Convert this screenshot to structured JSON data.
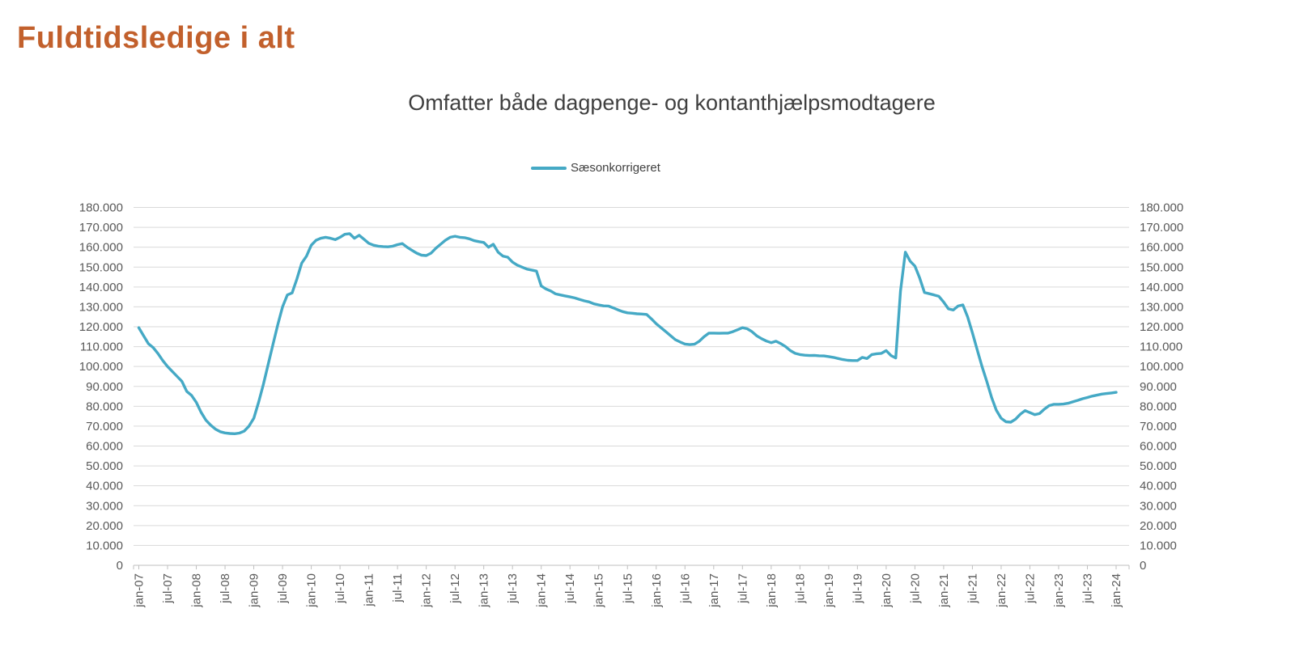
{
  "chart_data": {
    "type": "line",
    "title": "Fuldtidsledige i alt",
    "subtitle": "Omfatter både dagpenge- og kontanthjælpsmodtagere",
    "legend_label": "Sæsonkorrigeret",
    "legend_position": "top-center",
    "title_color": "#c2602c",
    "line_color": "#45a9c5",
    "grid": "horizontal",
    "y_axis_sides": "both",
    "ylim": [
      0,
      180000
    ],
    "y_tick_step": 10000,
    "y_tick_values": [
      0,
      10000,
      20000,
      30000,
      40000,
      50000,
      60000,
      70000,
      80000,
      90000,
      100000,
      110000,
      120000,
      130000,
      140000,
      150000,
      160000,
      170000,
      180000
    ],
    "y_tick_labels": [
      "0",
      "10.000",
      "20.000",
      "30.000",
      "40.000",
      "50.000",
      "60.000",
      "70.000",
      "80.000",
      "90.000",
      "100.000",
      "110.000",
      "120.000",
      "130.000",
      "140.000",
      "150.000",
      "160.000",
      "170.000",
      "180.000"
    ],
    "x_tick_labels": [
      "jan-07",
      "jul-07",
      "jan-08",
      "jul-08",
      "jan-09",
      "jul-09",
      "jan-10",
      "jul-10",
      "jan-11",
      "jul-11",
      "jan-12",
      "jul-12",
      "jan-13",
      "jul-13",
      "jan-14",
      "jul-14",
      "jan-15",
      "jul-15",
      "jan-16",
      "jul-16",
      "jan-17",
      "jul-17",
      "jan-18",
      "jul-18",
      "jan-19",
      "jul-19",
      "jan-20",
      "jul-20",
      "jan-21",
      "jul-21",
      "jan-22",
      "jul-22",
      "jan-23",
      "jul-23",
      "jan-24"
    ],
    "x_tick_interval_months": 6,
    "series": [
      {
        "name": "Sæsonkorrigeret",
        "start": "jan-07",
        "end": "jan-24",
        "frequency": "monthly",
        "values": [
          119500,
          115500,
          111500,
          109500,
          106500,
          103000,
          100000,
          97500,
          95000,
          92500,
          87500,
          85500,
          82000,
          77000,
          73000,
          70500,
          68500,
          67200,
          66600,
          66300,
          66200,
          66500,
          67500,
          70000,
          74000,
          82000,
          91000,
          101000,
          111000,
          121000,
          130000,
          136000,
          137000,
          144000,
          152000,
          155500,
          161000,
          163500,
          164500,
          165000,
          164500,
          163800,
          165000,
          166500,
          166800,
          164500,
          166000,
          164000,
          162000,
          161000,
          160500,
          160300,
          160200,
          160500,
          161300,
          161800,
          160000,
          158500,
          157000,
          156000,
          155800,
          157000,
          159500,
          161500,
          163500,
          165000,
          165500,
          165000,
          164800,
          164200,
          163300,
          162800,
          162400,
          160000,
          161500,
          157500,
          155500,
          155000,
          152500,
          151000,
          150000,
          149000,
          148500,
          148000,
          140500,
          139000,
          138000,
          136500,
          136000,
          135500,
          135000,
          134500,
          133700,
          133000,
          132500,
          131500,
          131000,
          130500,
          130400,
          129500,
          128500,
          127600,
          127000,
          126800,
          126500,
          126400,
          126200,
          124000,
          121500,
          119500,
          117500,
          115500,
          113500,
          112300,
          111300,
          111000,
          111200,
          112700,
          115000,
          116800,
          116800,
          116700,
          116800,
          116800,
          117500,
          118500,
          119500,
          119000,
          117500,
          115400,
          114000,
          112800,
          112000,
          112700,
          111500,
          110000,
          108000,
          106600,
          106000,
          105700,
          105500,
          105600,
          105400,
          105300,
          105000,
          104600,
          104000,
          103500,
          103100,
          103000,
          103000,
          104600,
          104000,
          106000,
          106400,
          106600,
          108000,
          105500,
          104300,
          138000,
          157500,
          153000,
          150500,
          144500,
          137200,
          136600,
          136000,
          135300,
          132400,
          129000,
          128400,
          130400,
          131000,
          125000,
          117000,
          108500,
          100000,
          92500,
          84500,
          78000,
          74000,
          72200,
          72000,
          73500,
          76000,
          77800,
          76800,
          75800,
          76300,
          78500,
          80300,
          81000,
          81000,
          81100,
          81500,
          82300,
          83000,
          83800,
          84400,
          85100,
          85600,
          86100,
          86400,
          86700,
          87000
        ]
      }
    ]
  }
}
